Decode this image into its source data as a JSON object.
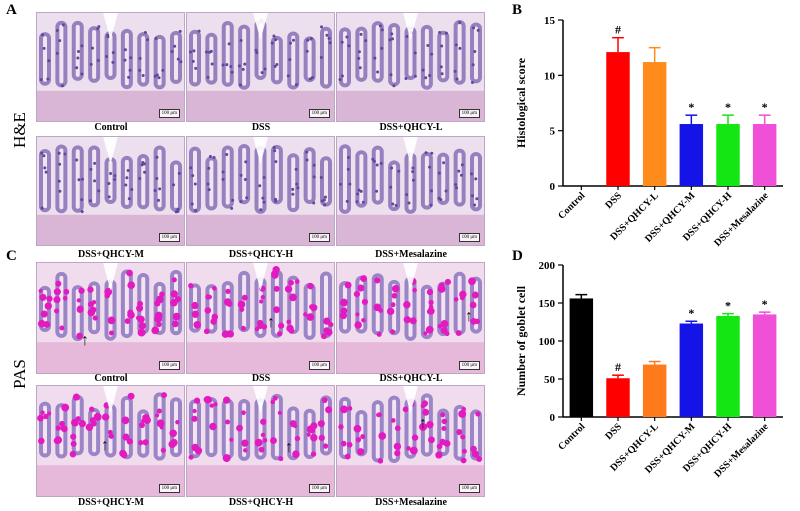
{
  "panels": {
    "A": {
      "letter": "A",
      "row_label": "H&E",
      "scale_bar": "100 μm",
      "captions": [
        "Control",
        "DSS",
        "DSS+QHCY-L",
        "DSS+QHCY-M",
        "DSS+QHCY-H",
        "DSS+Mesalazine"
      ]
    },
    "C": {
      "letter": "C",
      "row_label": "PAS",
      "scale_bar": "100 μm",
      "captions": [
        "Control",
        "DSS",
        "DSS+QHCY-L",
        "DSS+QHCY-M",
        "DSS+QHCY-H",
        "DSS+Mesalazine"
      ],
      "arrow_glyph": "↑"
    },
    "B": {
      "letter": "B"
    },
    "D": {
      "letter": "D"
    }
  },
  "colors": {
    "he_bg": "#ece0ef",
    "he_tissue": "#8a6fb6",
    "he_crypt": "#5b4a9a",
    "he_stroma": "#d9b6d6",
    "pas_bg": "#f1dcee",
    "pas_tissue": "#8b76c0",
    "pas_goblet": "#e21bc0",
    "pas_stroma": "#e6b8da"
  },
  "chart_data": [
    {
      "type": "bar",
      "ylabel": "Histological score",
      "categories": [
        "Control",
        "DSS",
        "DSS+QHCY-L",
        "DSS+QHCY-M",
        "DSS+QHCY-H",
        "DSS+Mesalazine"
      ],
      "values": [
        0,
        12.1,
        11.2,
        5.6,
        5.6,
        5.6
      ],
      "errors": [
        0,
        1.3,
        1.3,
        0.8,
        0.8,
        0.8
      ],
      "annotations": [
        "",
        "#",
        "",
        "*",
        "*",
        "*"
      ],
      "colors": [
        "#000000",
        "#ff0000",
        "#ff8c1a",
        "#1414e6",
        "#14e614",
        "#f04fd8"
      ],
      "ylim": [
        0,
        15
      ],
      "yticks": [
        0,
        5,
        10,
        15
      ]
    },
    {
      "type": "bar",
      "ylabel": "Number of goblet cell",
      "categories": [
        "Control",
        "DSS",
        "DSS+QHCY-L",
        "DSS+QHCY-M",
        "DSS+QHCY-H",
        "DSS+Mesalazine"
      ],
      "values": [
        156,
        51,
        69,
        123,
        133,
        135
      ],
      "errors": [
        5,
        4,
        4,
        3,
        3,
        3
      ],
      "annotations": [
        "",
        "#",
        "",
        "*",
        "*",
        "*"
      ],
      "colors": [
        "#000000",
        "#ff0000",
        "#ff7a1a",
        "#1414e6",
        "#14e614",
        "#f04fd8"
      ],
      "ylim": [
        0,
        200
      ],
      "yticks": [
        0,
        50,
        100,
        150,
        200
      ]
    }
  ]
}
